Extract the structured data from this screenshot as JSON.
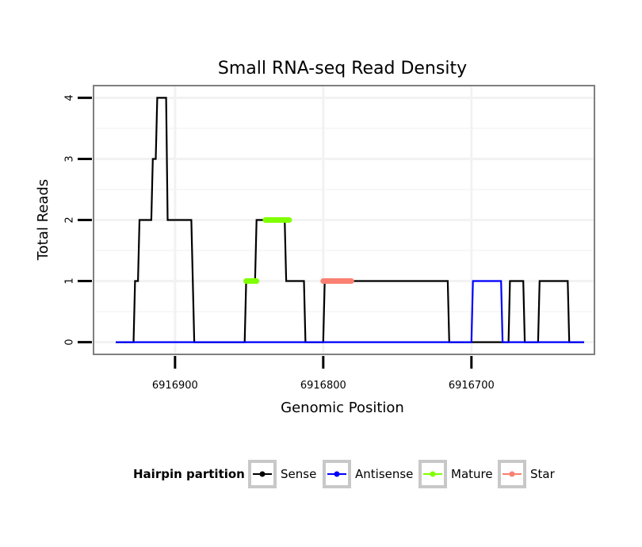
{
  "chart_data": {
    "type": "line",
    "title": "Small RNA-seq Read Density",
    "xlabel": "Genomic Position",
    "ylabel": "Total Reads",
    "xlim": [
      6916955,
      6916617
    ],
    "ylim": [
      -0.2,
      4.2
    ],
    "x_reversed": true,
    "x_ticks": [
      6916900,
      6916800,
      6916700
    ],
    "x_tick_labels": [
      "6916900",
      "6916800",
      "6916700"
    ],
    "y_ticks": [
      0,
      1,
      2,
      3,
      4
    ],
    "y_tick_labels": [
      "0",
      "1",
      "2",
      "3",
      "4"
    ],
    "grid": true,
    "legend": {
      "title": "Hairpin partition",
      "position": "bottom",
      "entries": [
        {
          "name": "Sense",
          "color": "#000000"
        },
        {
          "name": "Antisense",
          "color": "#0000ff"
        },
        {
          "name": "Mature",
          "color": "#7fff00"
        },
        {
          "name": "Star",
          "color": "#fa8072"
        }
      ]
    },
    "series": [
      {
        "name": "Sense",
        "color": "#000000",
        "x": [
          6916940,
          6916928,
          6916927,
          6916925,
          6916924,
          6916916,
          6916915,
          6916913,
          6916912,
          6916910,
          6916909,
          6916906,
          6916905,
          6916898,
          6916897,
          6916889,
          6916887,
          6916853,
          6916852,
          6916850,
          6916848,
          6916846,
          6916845,
          6916835,
          6916834,
          6916826,
          6916825,
          6916813,
          6916812,
          6916800,
          6916799,
          6916793,
          6916792,
          6916716,
          6916715,
          6916675,
          6916674,
          6916665,
          6916664,
          6916655,
          6916654,
          6916635,
          6916634,
          6916624
        ],
        "y": [
          0,
          0,
          1,
          1,
          2,
          2,
          3,
          3,
          4,
          4,
          4,
          4,
          2,
          2,
          2,
          2,
          0,
          0,
          1,
          1,
          1,
          1,
          2,
          2,
          2,
          2,
          1,
          1,
          0,
          0,
          1,
          1,
          1,
          1,
          0,
          0,
          1,
          1,
          0,
          0,
          1,
          1,
          0,
          0
        ],
        "values_note": "step profile"
      },
      {
        "name": "Antisense",
        "color": "#0000ff",
        "x": [
          6916940,
          6916700,
          6916699,
          6916680,
          6916679,
          6916624
        ],
        "y": [
          0,
          0,
          1,
          1,
          0,
          0
        ]
      },
      {
        "name": "Mature",
        "color": "#7fff00",
        "segments": [
          {
            "x": [
              6916852,
              6916845
            ],
            "y": [
              1,
              1
            ]
          },
          {
            "x": [
              6916839,
              6916823
            ],
            "y": [
              2,
              2
            ]
          }
        ]
      },
      {
        "name": "Star",
        "color": "#fa8072",
        "segments": [
          {
            "x": [
              6916800,
              6916781
            ],
            "y": [
              1,
              1
            ]
          }
        ]
      }
    ]
  }
}
